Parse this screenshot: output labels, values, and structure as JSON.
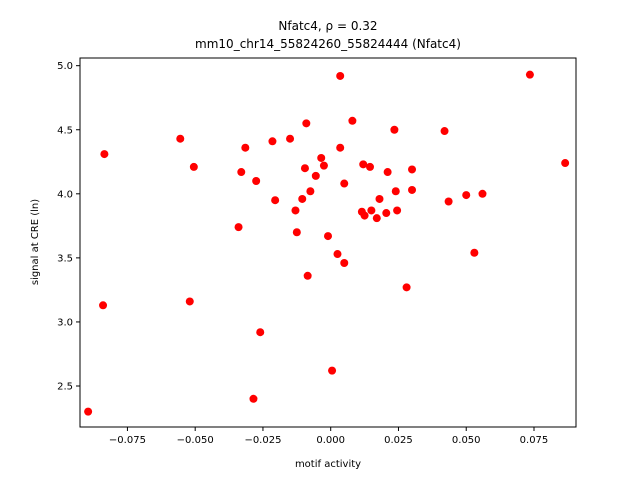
{
  "chart_data": {
    "type": "scatter",
    "title_line1": "Nfatc4, ρ = 0.32",
    "title_line2": "mm10_chr14_55824260_55824444 (Nfatc4)",
    "xlabel": "motif activity",
    "ylabel": "signal at CRE (ln)",
    "xlim": [
      -0.0925,
      0.0905
    ],
    "ylim": [
      2.18,
      5.06
    ],
    "xticks": [
      -0.075,
      -0.05,
      -0.025,
      0.0,
      0.025,
      0.05,
      0.075
    ],
    "xtick_labels": [
      "−0.075",
      "−0.050",
      "−0.025",
      "0.000",
      "0.025",
      "0.050",
      "0.075"
    ],
    "yticks": [
      2.5,
      3.0,
      3.5,
      4.0,
      4.5,
      5.0
    ],
    "ytick_labels": [
      "2.5",
      "3.0",
      "3.5",
      "4.0",
      "4.5",
      "5.0"
    ],
    "marker_color": "#ff0000",
    "grid": false,
    "points": [
      {
        "x": -0.0895,
        "y": 2.3
      },
      {
        "x": -0.0835,
        "y": 4.31
      },
      {
        "x": -0.084,
        "y": 3.13
      },
      {
        "x": -0.0555,
        "y": 4.43
      },
      {
        "x": -0.0505,
        "y": 4.21
      },
      {
        "x": -0.052,
        "y": 3.16
      },
      {
        "x": -0.034,
        "y": 3.74
      },
      {
        "x": -0.033,
        "y": 4.17
      },
      {
        "x": -0.0315,
        "y": 4.36
      },
      {
        "x": -0.0285,
        "y": 2.4
      },
      {
        "x": -0.0275,
        "y": 4.1
      },
      {
        "x": -0.026,
        "y": 2.92
      },
      {
        "x": -0.0215,
        "y": 4.41
      },
      {
        "x": -0.0205,
        "y": 3.95
      },
      {
        "x": -0.015,
        "y": 4.43
      },
      {
        "x": -0.013,
        "y": 3.87
      },
      {
        "x": -0.0125,
        "y": 3.7
      },
      {
        "x": -0.0105,
        "y": 3.96
      },
      {
        "x": -0.0095,
        "y": 4.2
      },
      {
        "x": -0.009,
        "y": 4.55
      },
      {
        "x": -0.0085,
        "y": 3.36
      },
      {
        "x": -0.0075,
        "y": 4.02
      },
      {
        "x": -0.0055,
        "y": 4.14
      },
      {
        "x": -0.0035,
        "y": 4.28
      },
      {
        "x": -0.0025,
        "y": 4.22
      },
      {
        "x": -0.001,
        "y": 3.67
      },
      {
        "x": 0.0005,
        "y": 2.62
      },
      {
        "x": 0.0025,
        "y": 3.53
      },
      {
        "x": 0.0035,
        "y": 4.92
      },
      {
        "x": 0.0035,
        "y": 4.36
      },
      {
        "x": 0.005,
        "y": 4.08
      },
      {
        "x": 0.005,
        "y": 3.46
      },
      {
        "x": 0.008,
        "y": 4.57
      },
      {
        "x": 0.0115,
        "y": 3.86
      },
      {
        "x": 0.012,
        "y": 4.23
      },
      {
        "x": 0.0125,
        "y": 3.83
      },
      {
        "x": 0.0145,
        "y": 4.21
      },
      {
        "x": 0.015,
        "y": 3.87
      },
      {
        "x": 0.017,
        "y": 3.81
      },
      {
        "x": 0.018,
        "y": 3.96
      },
      {
        "x": 0.0205,
        "y": 3.85
      },
      {
        "x": 0.021,
        "y": 4.17
      },
      {
        "x": 0.0235,
        "y": 4.5
      },
      {
        "x": 0.024,
        "y": 4.02
      },
      {
        "x": 0.0245,
        "y": 3.87
      },
      {
        "x": 0.028,
        "y": 3.27
      },
      {
        "x": 0.03,
        "y": 4.19
      },
      {
        "x": 0.03,
        "y": 4.03
      },
      {
        "x": 0.042,
        "y": 4.49
      },
      {
        "x": 0.0435,
        "y": 3.94
      },
      {
        "x": 0.05,
        "y": 3.99
      },
      {
        "x": 0.053,
        "y": 3.54
      },
      {
        "x": 0.056,
        "y": 4.0
      },
      {
        "x": 0.0735,
        "y": 4.93
      },
      {
        "x": 0.0865,
        "y": 4.24
      }
    ]
  }
}
